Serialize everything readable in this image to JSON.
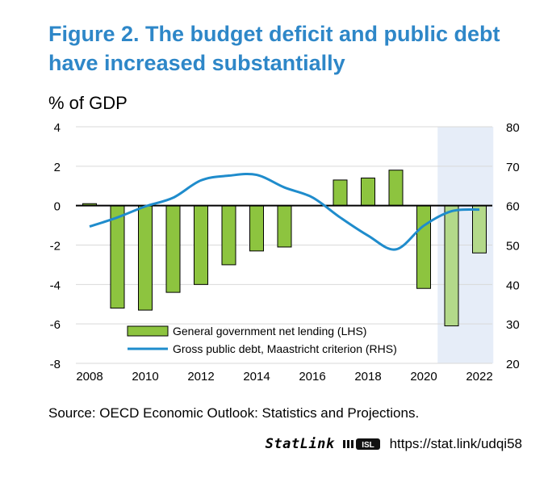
{
  "figure": {
    "title_line1": "Figure 2. The budget deficit and public debt",
    "title_line2": "have increased substantially",
    "unit_label": "% of GDP",
    "source": "Source: OECD Economic Outlook: Statistics and Projections.",
    "statlink_brand": "StatLink",
    "statlink_logo_text": "ISL",
    "statlink_url": "https://stat.link/udqi58"
  },
  "colors": {
    "title": "#2e87c8",
    "bar": "#8dc43f",
    "bar_projection": "#b3d98a",
    "line": "#1f8ccc",
    "projection_shade": "#e6edf8",
    "grid": "#d9d9d9"
  },
  "chart_data": {
    "type": "bar+line",
    "x": [
      2008,
      2009,
      2010,
      2011,
      2012,
      2013,
      2014,
      2015,
      2016,
      2017,
      2018,
      2019,
      2020,
      2021,
      2022
    ],
    "x_tick_labels": [
      "2008",
      "2010",
      "2012",
      "2014",
      "2016",
      "2018",
      "2020",
      "2022"
    ],
    "left_axis": {
      "ylim": [
        -8,
        4
      ],
      "ticks": [
        "4",
        "2",
        "0",
        "-2",
        "-4",
        "-6",
        "-8"
      ],
      "tick_values": [
        4,
        2,
        0,
        -2,
        -4,
        -6,
        -8
      ]
    },
    "right_axis": {
      "ylim": [
        20,
        80
      ],
      "ticks": [
        "80",
        "70",
        "60",
        "50",
        "40",
        "30",
        "20"
      ],
      "tick_values": [
        80,
        70,
        60,
        50,
        40,
        30,
        20
      ]
    },
    "projection_years": [
      2021,
      2022
    ],
    "series": [
      {
        "name": "General government net lending (LHS)",
        "kind": "bar",
        "axis": "left",
        "values": [
          0.1,
          -5.2,
          -5.3,
          -4.4,
          -4.0,
          -3.0,
          -2.3,
          -2.1,
          0.0,
          1.3,
          1.4,
          1.8,
          -4.2,
          -6.1,
          -2.4
        ]
      },
      {
        "name": "Gross public debt, Maastricht criterion (RHS)",
        "kind": "line",
        "axis": "right",
        "values": [
          54.7,
          57.0,
          59.8,
          62.0,
          66.4,
          67.6,
          67.8,
          64.6,
          62.1,
          57.0,
          52.4,
          48.9,
          54.9,
          58.6,
          59.0
        ]
      }
    ],
    "legend": [
      "General government net lending (LHS)",
      "Gross public debt, Maastricht criterion (RHS)"
    ],
    "legend_position": "bottom-center"
  }
}
